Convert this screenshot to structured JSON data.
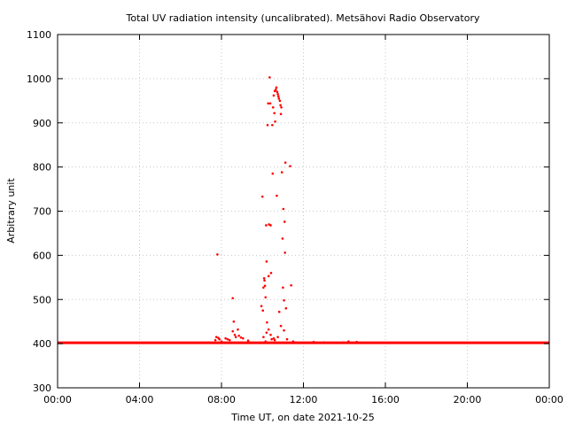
{
  "chart_data": {
    "type": "scatter",
    "title": "Total UV radiation intensity (uncalibrated). Metsähovi Radio Observatory",
    "xlabel": "Time UT, on date 2021-10-25",
    "ylabel": "Arbitrary unit",
    "xlim": [
      0,
      24
    ],
    "ylim": [
      300,
      1100
    ],
    "x_ticks": [
      {
        "value": 0,
        "label": "00:00"
      },
      {
        "value": 4,
        "label": "04:00"
      },
      {
        "value": 8,
        "label": "08:00"
      },
      {
        "value": 12,
        "label": "12:00"
      },
      {
        "value": 16,
        "label": "16:00"
      },
      {
        "value": 20,
        "label": "20:00"
      },
      {
        "value": 24,
        "label": "00:00"
      }
    ],
    "y_ticks": [
      {
        "value": 300,
        "label": "300"
      },
      {
        "value": 400,
        "label": "400"
      },
      {
        "value": 500,
        "label": "500"
      },
      {
        "value": 600,
        "label": "600"
      },
      {
        "value": 700,
        "label": "700"
      },
      {
        "value": 800,
        "label": "800"
      },
      {
        "value": 900,
        "label": "900"
      },
      {
        "value": 1000,
        "label": "1000"
      },
      {
        "value": 1100,
        "label": "1100"
      }
    ],
    "grid": true,
    "marker_color": "#ff0000",
    "baseline": {
      "value": 402,
      "x_start": 0,
      "x_end": 24
    },
    "series": [
      {
        "points": [
          [
            7.8,
            602
          ],
          [
            7.75,
            415
          ],
          [
            7.85,
            413
          ],
          [
            7.9,
            410
          ],
          [
            7.7,
            408
          ],
          [
            8.0,
            405
          ],
          [
            8.2,
            412
          ],
          [
            8.3,
            410
          ],
          [
            8.4,
            408
          ],
          [
            8.55,
            503
          ],
          [
            8.6,
            450
          ],
          [
            8.55,
            428
          ],
          [
            8.65,
            420
          ],
          [
            8.7,
            415
          ],
          [
            8.8,
            432
          ],
          [
            8.85,
            418
          ],
          [
            8.95,
            414
          ],
          [
            9.05,
            412
          ],
          [
            9.3,
            407
          ],
          [
            9.95,
            485
          ],
          [
            10.0,
            733
          ],
          [
            10.02,
            475
          ],
          [
            10.05,
            527
          ],
          [
            10.08,
            548
          ],
          [
            10.1,
            543
          ],
          [
            10.12,
            531
          ],
          [
            10.15,
            505
          ],
          [
            10.18,
            668
          ],
          [
            10.2,
            586
          ],
          [
            10.22,
            448
          ],
          [
            10.25,
            895
          ],
          [
            10.28,
            944
          ],
          [
            10.3,
            553
          ],
          [
            10.32,
            670
          ],
          [
            10.35,
            1003
          ],
          [
            10.38,
            944
          ],
          [
            10.4,
            668
          ],
          [
            10.42,
            560
          ],
          [
            10.45,
            410
          ],
          [
            10.48,
            895
          ],
          [
            10.5,
            785
          ],
          [
            10.52,
            935
          ],
          [
            10.55,
            962
          ],
          [
            10.58,
            922
          ],
          [
            10.6,
            972
          ],
          [
            10.62,
            903
          ],
          [
            10.65,
            975
          ],
          [
            10.68,
            980
          ],
          [
            10.7,
            735
          ],
          [
            10.72,
            970
          ],
          [
            10.75,
            965
          ],
          [
            10.78,
            960
          ],
          [
            10.8,
            955
          ],
          [
            10.82,
            472
          ],
          [
            10.85,
            950
          ],
          [
            10.88,
            940
          ],
          [
            10.9,
            920
          ],
          [
            10.92,
            935
          ],
          [
            10.95,
            788
          ],
          [
            10.98,
            638
          ],
          [
            11.0,
            527
          ],
          [
            11.02,
            705
          ],
          [
            11.05,
            498
          ],
          [
            11.08,
            676
          ],
          [
            11.1,
            606
          ],
          [
            11.12,
            810
          ],
          [
            11.15,
            480
          ],
          [
            11.35,
            802
          ],
          [
            11.4,
            532
          ],
          [
            10.4,
            420
          ],
          [
            10.55,
            412
          ],
          [
            10.2,
            425
          ],
          [
            10.05,
            415
          ],
          [
            10.15,
            405
          ],
          [
            10.3,
            432
          ],
          [
            10.6,
            408
          ],
          [
            10.75,
            415
          ],
          [
            10.9,
            440
          ],
          [
            11.05,
            430
          ],
          [
            11.2,
            410
          ],
          [
            11.5,
            405
          ],
          [
            12.5,
            404
          ],
          [
            13.0,
            403
          ],
          [
            14.2,
            405
          ],
          [
            14.6,
            404
          ]
        ]
      }
    ]
  }
}
